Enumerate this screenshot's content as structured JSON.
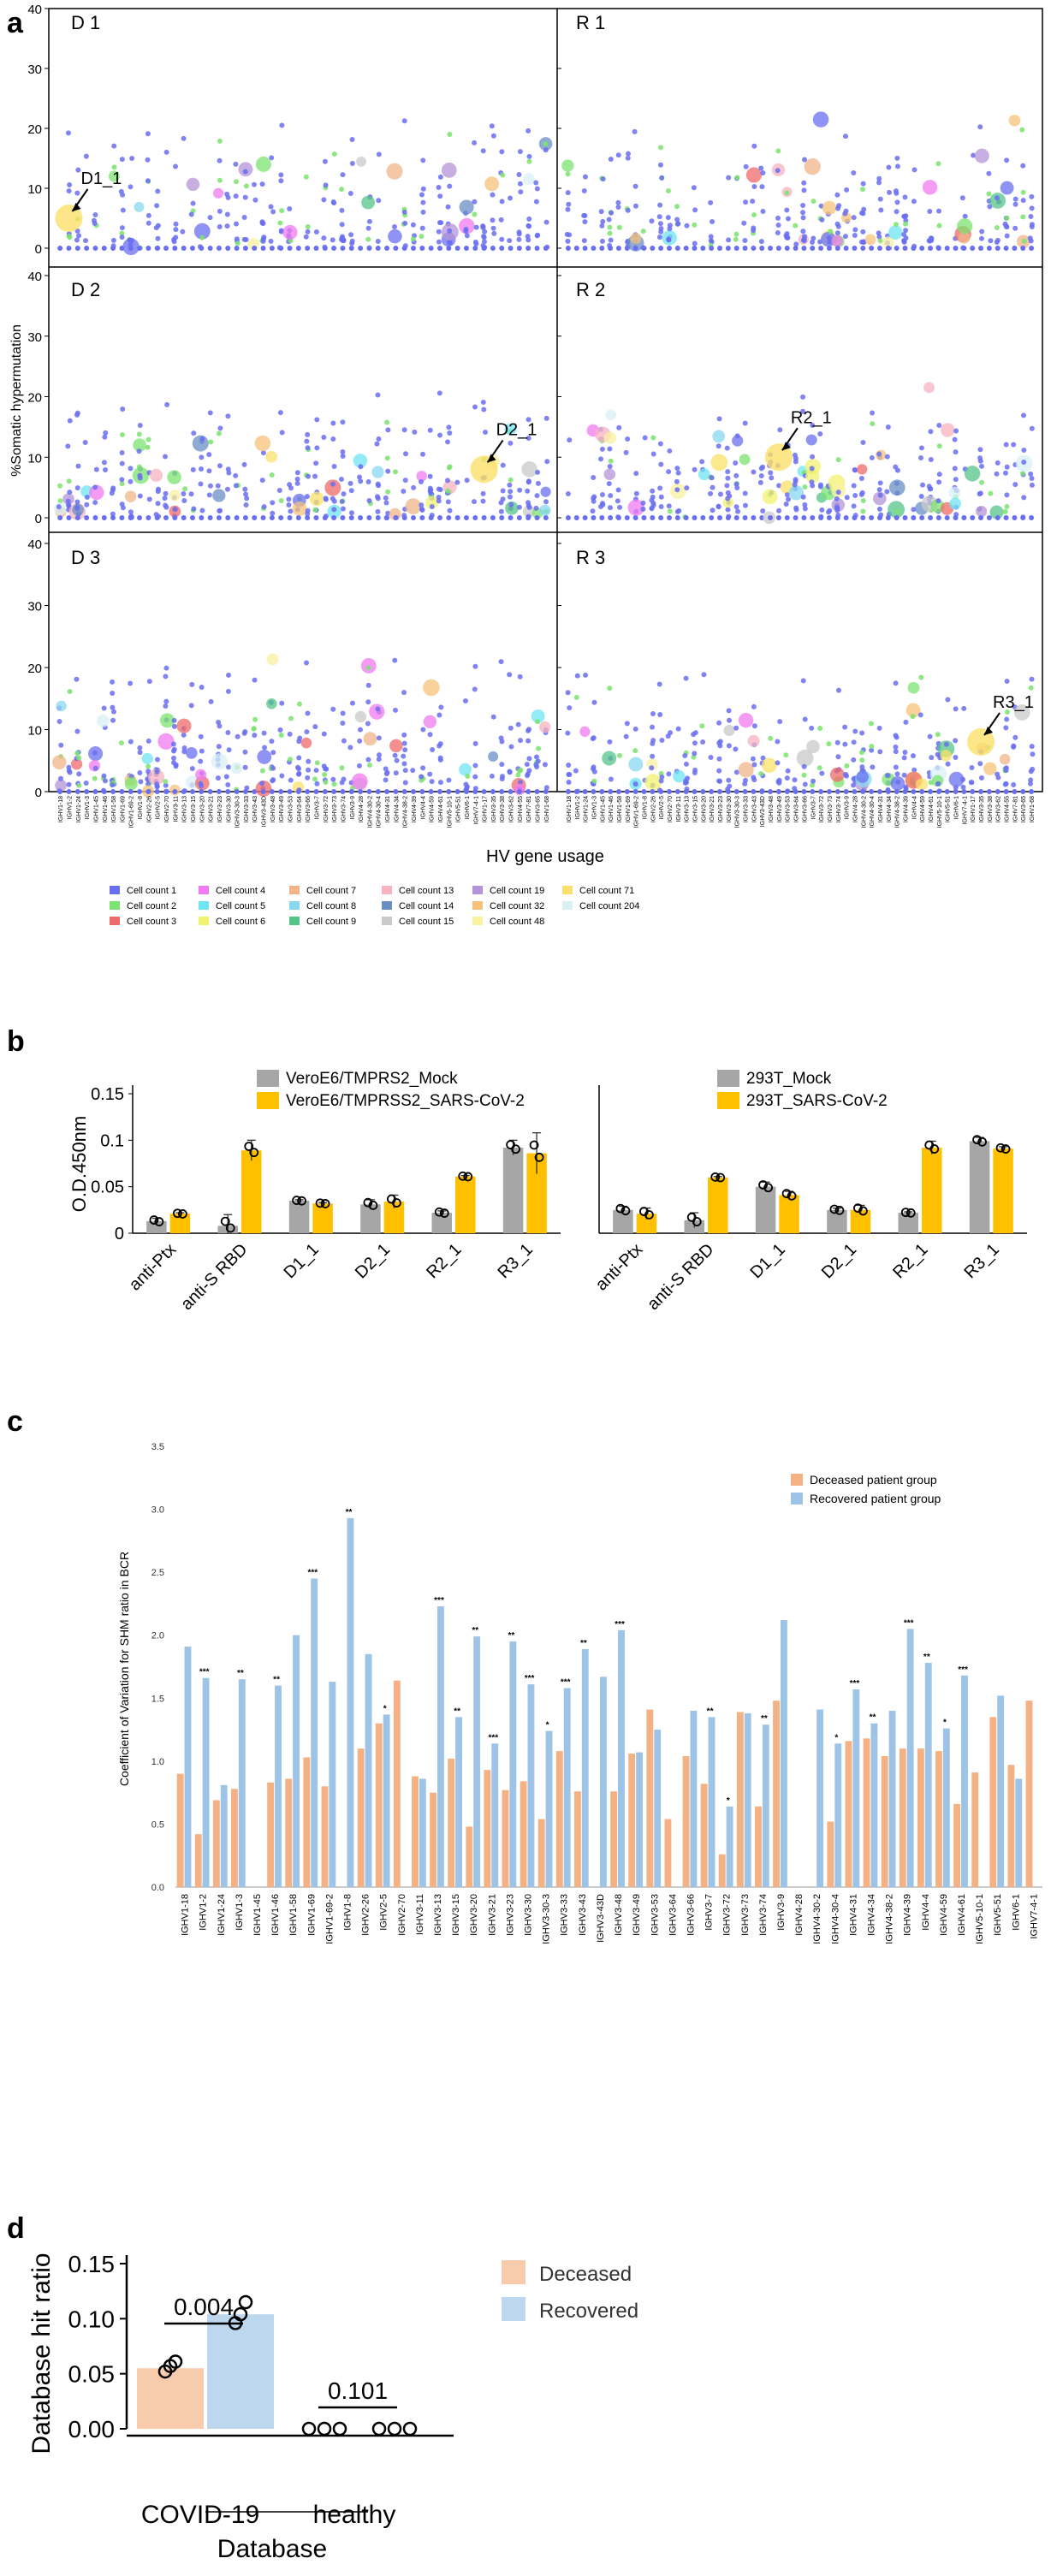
{
  "panel_labels": {
    "a": "a",
    "b": "b",
    "c": "c",
    "d": "d"
  },
  "chart_data": [
    {
      "id": "a",
      "type": "scatter",
      "ylabel": "%Somatic hypermutation",
      "xlabel": "HV gene usage",
      "ylim": [
        0,
        40
      ],
      "yticks": [
        0,
        10,
        20,
        30,
        40
      ],
      "n_genes": 56,
      "gene_labels": [
        "IGHV1-18",
        "IGHV1-2",
        "IGHV1-24",
        "IGHV1-3",
        "IGHV1-45",
        "IGHV1-46",
        "IGHV1-58",
        "IGHV1-69",
        "IGHV1-69-2",
        "IGHV1-8",
        "IGHV2-26",
        "IGHV2-5",
        "IGHV2-70",
        "IGHV3-11",
        "IGHV3-13",
        "IGHV3-15",
        "IGHV3-20",
        "IGHV3-21",
        "IGHV3-23",
        "IGHV3-30",
        "IGHV3-30-3",
        "IGHV3-33",
        "IGHV3-43",
        "IGHV3-43D",
        "IGHV3-48",
        "IGHV3-49",
        "IGHV3-53",
        "IGHV3-64",
        "IGHV3-66",
        "IGHV3-7",
        "IGHV3-72",
        "IGHV3-73",
        "IGHV3-74",
        "IGHV3-9",
        "IGHV4-28",
        "IGHV4-30-2",
        "IGHV4-30-4",
        "IGHV4-31",
        "IGHV4-34",
        "IGHV4-38-2",
        "IGHV4-39",
        "IGHV4-4",
        "IGHV4-59",
        "IGHV4-61",
        "IGHV5-10-1",
        "IGHV5-51",
        "IGHV6-1",
        "IGHV7-4-1",
        "IGHV1-17",
        "IGHV3-35",
        "IGHV3-38",
        "IGHV3-62",
        "IGHV4-55",
        "IGHV7-81",
        "IGHV3-65",
        "IGHV1-68"
      ],
      "facets": [
        {
          "name": "D 1",
          "annotation": {
            "text": "D1_1",
            "gene": 1,
            "y": 5
          }
        },
        {
          "name": "R 1",
          "annotation": null
        },
        {
          "name": "D 2",
          "annotation": {
            "text": "D2_1",
            "gene": 48,
            "y": 8
          }
        },
        {
          "name": "R 2",
          "annotation": {
            "text": "R2_1",
            "gene": 25,
            "y": 10
          }
        },
        {
          "name": "D 3",
          "annotation": null
        },
        {
          "name": "R 3",
          "annotation": {
            "text": "R3_1",
            "gene": 49,
            "y": 8
          }
        }
      ],
      "legend": [
        {
          "label": "Cell count 1",
          "color": "#6a6ff0"
        },
        {
          "label": "Cell count 2",
          "color": "#7be36f"
        },
        {
          "label": "Cell count 3",
          "color": "#ef6a6a"
        },
        {
          "label": "Cell count 4",
          "color": "#f07bf0"
        },
        {
          "label": "Cell count 5",
          "color": "#6fe6f2"
        },
        {
          "label": "Cell count 6",
          "color": "#f2f26f"
        },
        {
          "label": "Cell count 7",
          "color": "#f0b48a"
        },
        {
          "label": "Cell count 8",
          "color": "#8ad7f0"
        },
        {
          "label": "Cell count 9",
          "color": "#55c488"
        },
        {
          "label": "Cell count 13",
          "color": "#f7b3c0"
        },
        {
          "label": "Cell count 14",
          "color": "#6a8fc4"
        },
        {
          "label": "Cell count 15",
          "color": "#c9c9c9"
        },
        {
          "label": "Cell count 19",
          "color": "#b494d8"
        },
        {
          "label": "Cell count 32",
          "color": "#f6c27a"
        },
        {
          "label": "Cell count 48",
          "color": "#f9f0a0"
        },
        {
          "label": "Cell count 71",
          "color": "#fbe06a"
        },
        {
          "label": "Cell count 204",
          "color": "#d8f0f4"
        }
      ]
    },
    {
      "id": "b",
      "type": "bar",
      "ylabel": "O.D.450nm",
      "ylim": [
        0,
        0.15
      ],
      "yticks": [
        "0",
        "0.05",
        "0.1",
        "0.15"
      ],
      "categories": [
        "anti-Ptx",
        "anti-S RBD",
        "D1_1",
        "D2_1",
        "R2_1",
        "R3_1"
      ],
      "subplots": [
        {
          "series": [
            {
              "name": "VeroE6/TMPRS2_Mock",
              "color": "#a6a6a6",
              "values": [
                0.013,
                0.008,
                0.035,
                0.031,
                0.022,
                0.092
              ],
              "errors": [
                0.003,
                0.012,
                0.001,
                0.005,
                0.002,
                0.008
              ]
            },
            {
              "name": "VeroE6/TMPRSS2_SARS-CoV-2",
              "color": "#ffc000",
              "values": [
                0.021,
                0.089,
                0.032,
                0.034,
                0.061,
                0.086
              ],
              "errors": [
                0.001,
                0.011,
                0.001,
                0.007,
                0.001,
                0.022
              ]
            }
          ]
        },
        {
          "series": [
            {
              "name": "293T_Mock",
              "color": "#a6a6a6",
              "values": [
                0.025,
                0.014,
                0.05,
                0.025,
                0.022,
                0.099
              ],
              "errors": [
                0.004,
                0.008,
                0.005,
                0.002,
                0.001,
                0.004
              ]
            },
            {
              "name": "293T_SARS-CoV-2",
              "color": "#ffc000",
              "values": [
                0.021,
                0.06,
                0.041,
                0.025,
                0.092,
                0.091
              ],
              "errors": [
                0.006,
                0.001,
                0.004,
                0.005,
                0.007,
                0.002
              ]
            }
          ]
        }
      ]
    },
    {
      "id": "c",
      "type": "bar",
      "ylabel": "Coefficient of Variation for SHM ratio in BCR",
      "ylim": [
        0,
        3.5
      ],
      "yticks": [
        "0.0",
        "0.5",
        "1.0",
        "1.5",
        "2.0",
        "2.5",
        "3.0",
        "3.5"
      ],
      "categories": [
        "IGHV1-18",
        "IGHV1-2",
        "IGHV1-24",
        "IGHV1-3",
        "IGHV1-45",
        "IGHV1-46",
        "IGHV1-58",
        "IGHV1-69",
        "IGHV1-69-2",
        "IGHV1-8",
        "IGHV2-26",
        "IGHV2-5",
        "IGHV2-70",
        "IGHV3-11",
        "IGHV3-13",
        "IGHV3-15",
        "IGHV3-20",
        "IGHV3-21",
        "IGHV3-23",
        "IGHV3-30",
        "IGHV3-30-3",
        "IGHV3-33",
        "IGHV3-43",
        "IGHV3-43D",
        "IGHV3-48",
        "IGHV3-49",
        "IGHV3-53",
        "IGHV3-64",
        "IGHV3-66",
        "IGHV3-7",
        "IGHV3-72",
        "IGHV3-73",
        "IGHV3-74",
        "IGHV3-9",
        "IGHV4-28",
        "IGHV4-30-2",
        "IGHV4-30-4",
        "IGHV4-31",
        "IGHV4-34",
        "IGHV4-38-2",
        "IGHV4-39",
        "IGHV4-4",
        "IGHV4-59",
        "IGHV4-61",
        "IGHV5-10-1",
        "IGHV5-51",
        "IGHV6-1",
        "IGHV7-4-1"
      ],
      "series": [
        {
          "name": "Deceased patient group",
          "color": "#f4b183",
          "values": [
            0.9,
            0.42,
            0.69,
            0.78,
            0,
            0.83,
            0.86,
            1.03,
            0.8,
            0,
            1.1,
            1.3,
            1.64,
            0.88,
            0.75,
            1.02,
            0.48,
            0.93,
            0.77,
            0.84,
            0.54,
            1.08,
            0.76,
            0,
            0.76,
            1.06,
            1.41,
            0.54,
            1.04,
            0.82,
            0.26,
            1.39,
            0.64,
            1.48,
            0,
            0,
            0.52,
            1.16,
            1.18,
            1.04,
            1.1,
            1.1,
            1.08,
            0.66,
            0.91,
            1.35,
            0.97,
            1.48
          ]
        },
        {
          "name": "Recovered patient group",
          "color": "#9dc3e6",
          "values": [
            1.91,
            1.66,
            0.81,
            1.65,
            0,
            1.6,
            2.0,
            2.45,
            1.63,
            2.93,
            1.85,
            1.37,
            0,
            0.86,
            2.23,
            1.35,
            1.99,
            1.14,
            1.95,
            1.61,
            1.24,
            1.58,
            1.89,
            1.67,
            2.04,
            1.07,
            1.25,
            0,
            1.4,
            1.35,
            0.64,
            1.38,
            1.29,
            2.12,
            0,
            1.41,
            1.14,
            1.57,
            1.3,
            1.4,
            2.05,
            1.78,
            1.26,
            1.68,
            0,
            1.52,
            0.86,
            0
          ]
        }
      ],
      "significance": [
        "",
        "***",
        "",
        "**",
        "",
        "**",
        "",
        "***",
        "",
        "**",
        "",
        "*",
        "",
        "",
        "***",
        "**",
        "**",
        "***",
        "**",
        "***",
        "*",
        "***",
        "**",
        "",
        "***",
        "",
        "",
        "",
        "",
        "**",
        "*",
        "",
        "**",
        "",
        "",
        "",
        "*",
        "***",
        "**",
        "",
        "***",
        "**",
        "*",
        "***",
        "",
        "",
        "",
        ""
      ]
    },
    {
      "id": "d",
      "type": "bar",
      "ylabel": "Database hit ratio",
      "xlabel": "Database",
      "ylim": [
        0,
        0.15
      ],
      "yticks": [
        "0.00",
        "0.05",
        "0.10",
        "0.15"
      ],
      "categories": [
        "COVID-19",
        "healthy"
      ],
      "series": [
        {
          "name": "Deceased",
          "color": "#f8cbad",
          "values": [
            0.055,
            0.0
          ],
          "points": [
            [
              0.052,
              0.057,
              0.061
            ],
            [
              0.0,
              0.0,
              0.0
            ]
          ]
        },
        {
          "name": "Recovered",
          "color": "#bdd7ee",
          "values": [
            0.104,
            0.0
          ],
          "points": [
            [
              0.096,
              0.104,
              0.115
            ],
            [
              0.0,
              0.0,
              0.0
            ]
          ]
        }
      ],
      "pvalues": [
        {
          "category": "COVID-19",
          "text": "0.004"
        },
        {
          "category": "healthy",
          "text": "0.101"
        }
      ]
    }
  ]
}
